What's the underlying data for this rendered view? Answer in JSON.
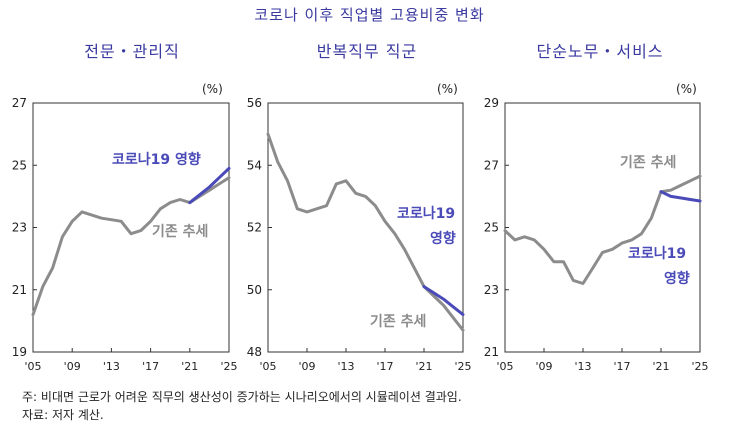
{
  "title": "코로나 이후 직업별 고용비중 변화",
  "footnotes": {
    "note": "주: 비대면 근로가 어려운 직무의 생산성이 증가하는 시나리오에서의 시뮬레이션 결과임.",
    "source": "자료: 저자 계산."
  },
  "colors": {
    "baseline": "#8c8c8c",
    "covid": "#4a4ab8",
    "title": "#3a3aa0"
  },
  "chart_data": [
    {
      "type": "line",
      "title": "전문・관리직",
      "unit": "(%)",
      "xlim": [
        2005,
        2025
      ],
      "ylim": [
        19,
        27
      ],
      "yticks": [
        19,
        21,
        23,
        25,
        27
      ],
      "xticks": [
        "'05",
        "'09",
        "'13",
        "'17",
        "'21",
        "'25"
      ],
      "xtick_values": [
        2005,
        2009,
        2013,
        2017,
        2021,
        2025
      ],
      "series": [
        {
          "name": "기존 추세",
          "color": "#8c8c8c",
          "x": [
            2005,
            2006,
            2007,
            2008,
            2009,
            2010,
            2011,
            2012,
            2013,
            2014,
            2015,
            2016,
            2017,
            2018,
            2019,
            2020,
            2021,
            2022,
            2023,
            2024,
            2025
          ],
          "y": [
            20.2,
            21.1,
            21.7,
            22.7,
            23.2,
            23.5,
            23.4,
            23.3,
            23.25,
            23.2,
            22.8,
            22.9,
            23.2,
            23.6,
            23.8,
            23.9,
            23.8,
            24.0,
            24.2,
            24.4,
            24.6
          ]
        },
        {
          "name": "코로나19 영향",
          "color": "#4a4ab8",
          "x": [
            2021,
            2022,
            2023,
            2024,
            2025
          ],
          "y": [
            23.8,
            24.05,
            24.3,
            24.6,
            24.9
          ]
        }
      ],
      "annotations": [
        "코로나19 영향",
        "기존 추세"
      ]
    },
    {
      "type": "line",
      "title": "반복직무 직군",
      "unit": "(%)",
      "xlim": [
        2005,
        2025
      ],
      "ylim": [
        48,
        56
      ],
      "yticks": [
        48,
        50,
        52,
        54,
        56
      ],
      "xticks": [
        "'05",
        "'09",
        "'13",
        "'17",
        "'21",
        "'25"
      ],
      "xtick_values": [
        2005,
        2009,
        2013,
        2017,
        2021,
        2025
      ],
      "series": [
        {
          "name": "기존 추세",
          "color": "#8c8c8c",
          "x": [
            2005,
            2006,
            2007,
            2008,
            2009,
            2010,
            2011,
            2012,
            2013,
            2014,
            2015,
            2016,
            2017,
            2018,
            2019,
            2020,
            2021,
            2022,
            2023,
            2024,
            2025
          ],
          "y": [
            55.0,
            54.1,
            53.5,
            52.6,
            52.5,
            52.6,
            52.7,
            53.4,
            53.5,
            53.1,
            53.0,
            52.7,
            52.2,
            51.8,
            51.3,
            50.7,
            50.1,
            49.8,
            49.5,
            49.1,
            48.7
          ]
        },
        {
          "name": "코로나19 영향",
          "color": "#4a4ab8",
          "x": [
            2021,
            2022,
            2023,
            2024,
            2025
          ],
          "y": [
            50.1,
            49.9,
            49.7,
            49.45,
            49.2
          ]
        }
      ],
      "annotations": [
        "코로나19 영향",
        "기존 추세"
      ]
    },
    {
      "type": "line",
      "title": "단순노무・서비스",
      "unit": "(%)",
      "xlim": [
        2005,
        2025
      ],
      "ylim": [
        21,
        29
      ],
      "yticks": [
        21,
        23,
        25,
        27,
        29
      ],
      "xticks": [
        "'05",
        "'09",
        "'13",
        "'17",
        "'21",
        "'25"
      ],
      "xtick_values": [
        2005,
        2009,
        2013,
        2017,
        2021,
        2025
      ],
      "series": [
        {
          "name": "기존 추세",
          "color": "#8c8c8c",
          "x": [
            2005,
            2006,
            2007,
            2008,
            2009,
            2010,
            2011,
            2012,
            2013,
            2014,
            2015,
            2016,
            2017,
            2018,
            2019,
            2020,
            2021,
            2022,
            2023,
            2024,
            2025
          ],
          "y": [
            24.9,
            24.6,
            24.7,
            24.6,
            24.3,
            23.9,
            23.9,
            23.3,
            23.2,
            23.7,
            24.2,
            24.3,
            24.5,
            24.6,
            24.8,
            25.3,
            26.15,
            26.2,
            26.35,
            26.5,
            26.65
          ]
        },
        {
          "name": "코로나19 영향",
          "color": "#4a4ab8",
          "x": [
            2021,
            2022,
            2023,
            2024,
            2025
          ],
          "y": [
            26.15,
            26.0,
            25.95,
            25.9,
            25.85
          ]
        }
      ],
      "annotations": [
        "기존 추세",
        "코로나19 영향"
      ]
    }
  ]
}
